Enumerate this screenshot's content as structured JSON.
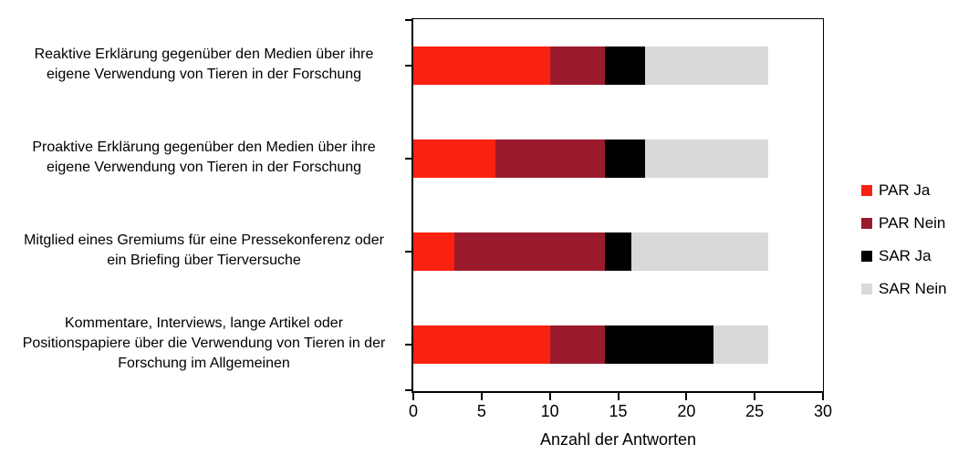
{
  "chart_data": {
    "type": "bar",
    "orientation": "horizontal",
    "stacked": true,
    "title": "",
    "xlabel": "Anzahl der Antworten",
    "ylabel": "",
    "xlim": [
      0,
      30
    ],
    "xticks": [
      0,
      5,
      10,
      15,
      20,
      25,
      30
    ],
    "grid": false,
    "legend_position": "right",
    "categories": [
      "Reaktive Erklärung gegenüber den Medien über ihre eigene Verwendung von Tieren in der Forschung",
      "Proaktive Erklärung gegenüber den Medien über ihre eigene Verwendung von Tieren in der Forschung",
      "Mitglied eines Gremiums für eine Pressekonferenz oder ein Briefing über Tierversuche",
      "Kommentare, Interviews, lange Artikel oder Positionspapiere über die Verwendung von Tieren in der Forschung im Allgemeinen"
    ],
    "category_label_lines": [
      [
        "Reaktive Erklärung gegenüber den Medien über ihre",
        "eigene Verwendung von Tieren in der Forschung"
      ],
      [
        "Proaktive Erklärung gegenüber den Medien über ihre",
        "eigene Verwendung von Tieren in der Forschung"
      ],
      [
        "Mitglied eines Gremiums für eine Pressekonferenz oder",
        "ein Briefing über Tierversuche"
      ],
      [
        "Kommentare, Interviews, lange Artikel oder",
        "Positionspapiere über die Verwendung von Tieren in der",
        "Forschung im Allgemeinen"
      ]
    ],
    "series": [
      {
        "name": "PAR Ja",
        "color": "#FB2110",
        "values": [
          10,
          6,
          3,
          10
        ]
      },
      {
        "name": "PAR Nein",
        "color": "#9B1B2D",
        "values": [
          4,
          8,
          11,
          4
        ]
      },
      {
        "name": "SAR Ja",
        "color": "#000000",
        "values": [
          3,
          3,
          2,
          8
        ]
      },
      {
        "name": "SAR Nein",
        "color": "#D9D9D9",
        "values": [
          9,
          9,
          10,
          4
        ]
      }
    ],
    "totals": [
      26,
      26,
      26,
      26
    ]
  },
  "colors": {
    "axis": "#000000",
    "background": "#FFFFFF",
    "text": "#000000"
  }
}
